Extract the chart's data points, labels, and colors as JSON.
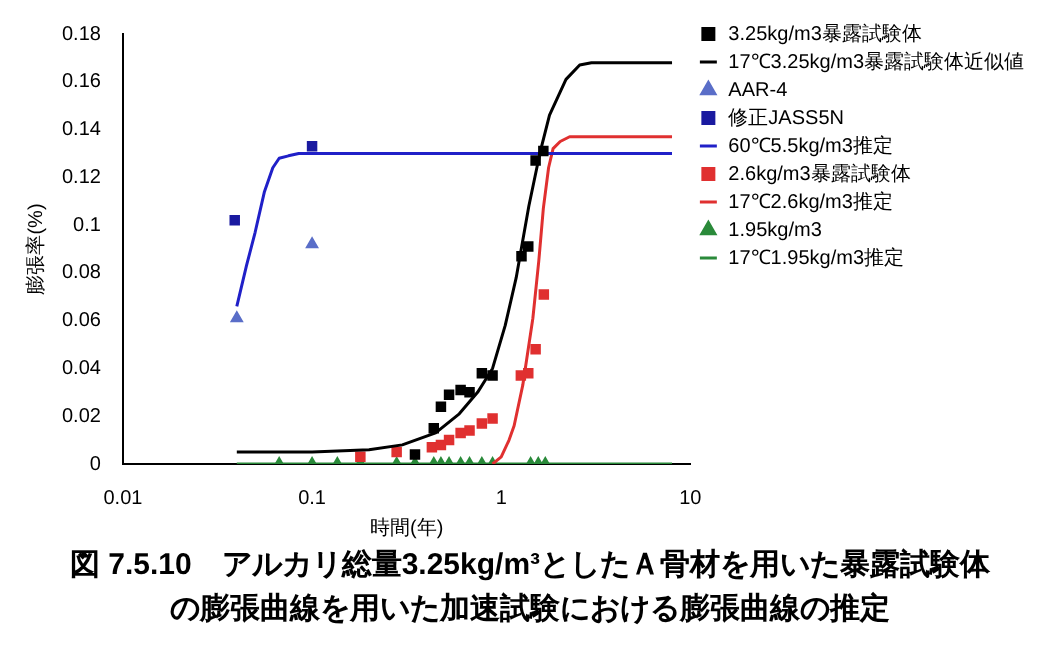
{
  "chart_data": {
    "type": "scatter",
    "title": "図 7.5.10　アルカリ総量3.25kg/m³としたＡ骨材を用いた暴露試験体の膨張曲線を用いた加速試験における膨張曲線の推定",
    "xlabel": "時間(年)",
    "ylabel": "膨張率(%)",
    "log": "x",
    "grid": false,
    "legend": "top right",
    "xlim": [
      0.01,
      10
    ],
    "xticks": [
      0.01,
      0.1,
      1,
      10
    ],
    "ylim": [
      0,
      0.18
    ],
    "yticks": [
      0,
      0.02,
      0.04,
      0.06,
      0.08,
      0.1,
      0.12,
      0.14,
      0.16,
      0.18
    ],
    "series": [
      {
        "name": "3.25kg/m3暴露試験体",
        "marker": "square",
        "color": "#000000",
        "x": [
          0.35,
          0.44,
          0.48,
          0.53,
          0.61,
          0.68,
          0.79,
          0.9,
          1.28,
          1.39,
          1.52,
          1.67
        ],
        "values": [
          0.004,
          0.015,
          0.024,
          0.029,
          0.031,
          0.03,
          0.038,
          0.037,
          0.087,
          0.091,
          0.127,
          0.131
        ]
      },
      {
        "name": "17℃3.25kg/m3暴露試験体近似値",
        "type": "line",
        "marker": "none",
        "color": "#000000",
        "x": [
          0.04,
          0.1,
          0.2,
          0.3,
          0.45,
          0.6,
          0.75,
          0.9,
          1.05,
          1.2,
          1.4,
          1.6,
          1.8,
          2.2,
          2.6,
          3,
          8
        ],
        "values": [
          0.005,
          0.005,
          0.006,
          0.008,
          0.013,
          0.021,
          0.03,
          0.04,
          0.058,
          0.078,
          0.108,
          0.13,
          0.146,
          0.161,
          0.167,
          0.168,
          0.168
        ]
      },
      {
        "name": "AAR-4",
        "marker": "triangle",
        "color": "#5a6ec8",
        "x": [
          0.04,
          0.1
        ],
        "values": [
          0.061,
          0.092
        ]
      },
      {
        "name": "修正JASS5N",
        "marker": "square",
        "color": "#1a1aa0",
        "x": [
          0.039,
          0.1
        ],
        "values": [
          0.102,
          0.133
        ]
      },
      {
        "name": "60℃5.5kg/m3推定",
        "type": "line",
        "marker": "none",
        "color": "#2020c8",
        "x": [
          0.04,
          0.045,
          0.05,
          0.056,
          0.062,
          0.067,
          0.075,
          0.085,
          0.1,
          8
        ],
        "values": [
          0.066,
          0.083,
          0.097,
          0.114,
          0.124,
          0.128,
          0.129,
          0.13,
          0.13,
          0.13
        ]
      },
      {
        "name": "2.6kg/m3暴露試験体",
        "marker": "square",
        "color": "#e03030",
        "x": [
          0.18,
          0.28,
          0.43,
          0.48,
          0.53,
          0.61,
          0.68,
          0.79,
          0.9,
          1.27,
          1.39,
          1.52,
          1.68
        ],
        "values": [
          0.003,
          0.005,
          0.007,
          0.008,
          0.01,
          0.013,
          0.014,
          0.017,
          0.019,
          0.037,
          0.038,
          0.048,
          0.071
        ]
      },
      {
        "name": "17℃2.6kg/m3推定",
        "type": "line",
        "marker": "none",
        "color": "#e03030",
        "x": [
          0.9,
          1.0,
          1.1,
          1.17,
          1.3,
          1.47,
          1.58,
          1.67,
          1.78,
          1.88,
          2.05,
          2.3,
          8
        ],
        "values": [
          0,
          0.003,
          0.01,
          0.016,
          0.033,
          0.061,
          0.085,
          0.107,
          0.124,
          0.132,
          0.135,
          0.137,
          0.137
        ]
      },
      {
        "name": "1.95kg/m3",
        "marker": "triangle",
        "color": "#2a8a3a",
        "x": [
          0.067,
          0.1,
          0.136,
          0.18,
          0.28,
          0.35,
          0.44,
          0.48,
          0.53,
          0.61,
          0.68,
          0.79,
          0.9,
          1.43,
          1.57,
          1.71
        ],
        "values": [
          0,
          0,
          0,
          0,
          0,
          0,
          0,
          0,
          0,
          0,
          0,
          0,
          0,
          0,
          0,
          0
        ]
      },
      {
        "name": "17℃1.95kg/m3推定",
        "type": "line",
        "marker": "none",
        "color": "#2a8a3a",
        "x": [
          0.04,
          8
        ],
        "values": [
          0,
          0
        ]
      }
    ]
  }
}
